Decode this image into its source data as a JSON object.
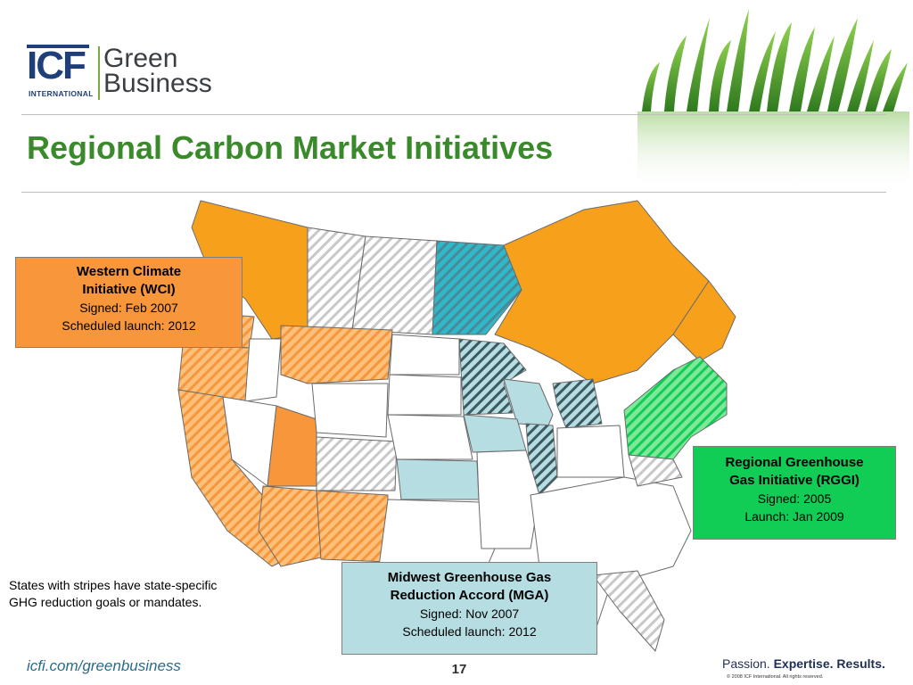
{
  "logo": {
    "mark": "ICF",
    "sub": "INTERNATIONAL",
    "word1": "Green",
    "word2": "Business"
  },
  "title": "Regional Carbon Market Initiatives",
  "legend_boxes": {
    "wci": {
      "heading_line1": "Western Climate",
      "heading_line2": "Initiative (WCI)",
      "signed": "Signed: Feb 2007",
      "launch": "Scheduled launch: 2012",
      "color": "#f7963b"
    },
    "rggi": {
      "heading_line1": "Regional Greenhouse",
      "heading_line2": "Gas Initiative (RGGI)",
      "signed": "Signed: 2005",
      "launch": "Launch: Jan 2009",
      "color": "#11cc55"
    },
    "mga": {
      "heading_line1": "Midwest Greenhouse Gas",
      "heading_line2": "Reduction Accord (MGA)",
      "signed": "Signed: Nov 2007",
      "launch": "Scheduled launch: 2012",
      "color": "#b6dde2"
    }
  },
  "note": {
    "line1": "States with stripes have state-specific",
    "line2": "GHG reduction goals or mandates."
  },
  "footer": {
    "url": "icfi.com/greenbusiness",
    "page": "17",
    "tag_passion": "Passion. ",
    "tag_expertise": "Expertise. ",
    "tag_results": "Results.",
    "copyright": "© 2008 ICF International. All rights reserved."
  }
}
